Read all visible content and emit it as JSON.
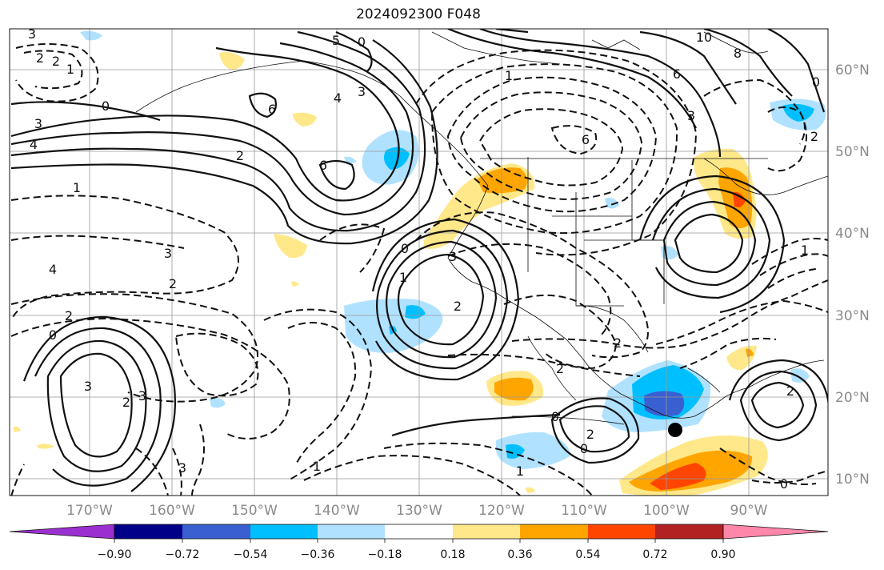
{
  "map": {
    "title": "2024092300 F048",
    "lon_labels": [
      "170°W",
      "160°W",
      "150°W",
      "140°W",
      "130°W",
      "120°W",
      "110°W",
      "100°W",
      "90°W"
    ],
    "lat_labels": [
      "60°N",
      "50°N",
      "40°N",
      "30°N",
      "20°N",
      "10°N"
    ],
    "contour_labels": [
      "3",
      "2",
      "2",
      "1",
      "0",
      "3",
      "4",
      "0",
      "5",
      "4",
      "3",
      "6",
      "2",
      "1",
      "10",
      "8",
      "6",
      "6",
      "3",
      "6",
      "3",
      "2",
      "1",
      "0",
      "4",
      "3",
      "2",
      "2",
      "0",
      "3",
      "2",
      "3",
      "2",
      "1",
      "1",
      "2",
      "0",
      "2",
      "0",
      "1",
      "1",
      "2",
      "2",
      "0",
      "0",
      "3"
    ],
    "marker": "storm-center",
    "colors": {
      "neg_090": "#9b30d0",
      "neg_072": "#000088",
      "neg_054": "#3a5fd0",
      "neg_036": "#00bfff",
      "neg_018": "#b0e2ff",
      "neutral": "#ffffff",
      "pos_018": "#ffe88a",
      "pos_036": "#ffa500",
      "pos_054": "#ff4500",
      "pos_072": "#b22222",
      "pos_090": "#ff88aa"
    }
  },
  "colorbar": {
    "ticks": [
      "−0.90",
      "−0.72",
      "−0.54",
      "−0.36",
      "−0.18",
      "0.18",
      "0.36",
      "0.54",
      "0.72",
      "0.90"
    ]
  }
}
